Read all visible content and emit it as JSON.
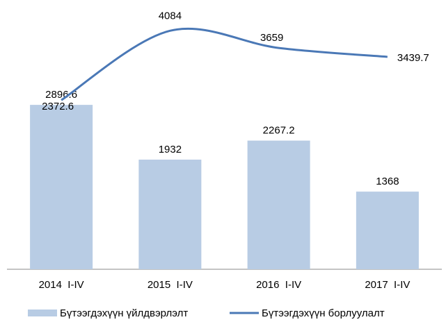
{
  "chart_data": {
    "type": "bar-line",
    "categories": [
      "2014  I-IV",
      "2015  I-IV",
      "2016  I-IV",
      "2017  I-IV"
    ],
    "series": [
      {
        "name": "Бүтээгдэхүүн үйлдвэрлэлт",
        "type": "bar",
        "color": "#b8cce4",
        "values": [
          2896.6,
          1932,
          2267.2,
          1368
        ]
      },
      {
        "name": "Бүтээгдэхүүн борлуулалт",
        "type": "line",
        "axis": "y2",
        "color": "#4a78b6",
        "values": [
          2372.6,
          4084,
          3659,
          3439.7
        ]
      }
    ],
    "ylim": [
      0,
      4500
    ],
    "y2lim": [
      -1800,
      4500
    ]
  }
}
